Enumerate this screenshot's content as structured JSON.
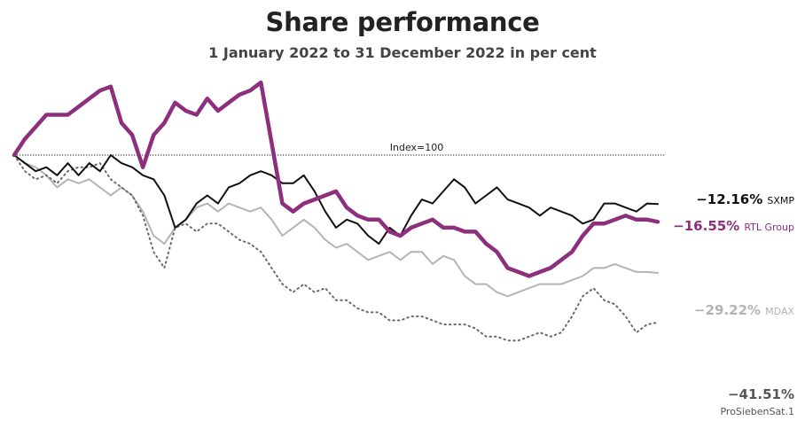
{
  "chart_data": {
    "type": "line",
    "title": "Share performance",
    "subtitle": "1 January 2022 to 31 December 2022 in per cent",
    "reference_line": {
      "label": "Index=100",
      "value": 100
    },
    "x_range": [
      "2022-01-01",
      "2022-12-31"
    ],
    "ylim": [
      50,
      125
    ],
    "grid": false,
    "legend": "none (end-of-line labels)",
    "series": [
      {
        "name": "SXMP",
        "label_value": "−12.16%",
        "color": "#111111",
        "style": "solid",
        "values": [
          100,
          98,
          96,
          97,
          95,
          98,
          95,
          98,
          96,
          100,
          98,
          97,
          95,
          94,
          90,
          82,
          84,
          88,
          90,
          88,
          92,
          93,
          95,
          96,
          95,
          93,
          93,
          95,
          91,
          86,
          82,
          84,
          83,
          80,
          78,
          82,
          80,
          85,
          89,
          88,
          91,
          94,
          92,
          88,
          90,
          92,
          89,
          88,
          87,
          85,
          87,
          86,
          85,
          83,
          84,
          88,
          88,
          87,
          86,
          88,
          87.84
        ]
      },
      {
        "name": "RTL Group",
        "label_value": "−16.55%",
        "color": "#8e2f7e",
        "style": "solid-thick",
        "values": [
          100,
          104,
          107,
          110,
          110,
          110,
          112,
          114,
          116,
          117,
          108,
          105,
          97,
          105,
          108,
          113,
          111,
          110,
          114,
          111,
          113,
          115,
          116,
          118,
          103,
          88,
          86,
          88,
          89,
          90,
          91,
          87,
          85,
          84,
          84,
          81,
          80,
          82,
          83,
          84,
          82,
          82,
          81,
          81,
          78,
          76,
          72,
          71,
          70,
          71,
          72,
          74,
          76,
          80,
          83,
          83,
          84,
          85,
          84,
          84,
          83.45
        ]
      },
      {
        "name": "MDAX",
        "label_value": "−29.22%",
        "color": "#b4b4b4",
        "style": "solid",
        "values": [
          100,
          98,
          97,
          95,
          92,
          94,
          93,
          94,
          92,
          90,
          92,
          90,
          86,
          80,
          78,
          82,
          84,
          87,
          88,
          86,
          88,
          87,
          86,
          87,
          84,
          80,
          82,
          84,
          82,
          79,
          77,
          78,
          76,
          74,
          75,
          76,
          74,
          76,
          76,
          73,
          75,
          74,
          70,
          68,
          68,
          66,
          65,
          66,
          67,
          68,
          68,
          68,
          69,
          70,
          72,
          72,
          73,
          72,
          71,
          71,
          70.78
        ]
      },
      {
        "name": "ProSiebenSat.1",
        "label_value": "−41.51%",
        "color": "#6b6b6b",
        "style": "dotted",
        "values": [
          100,
          96,
          94,
          95,
          93,
          96,
          97,
          97,
          98,
          94,
          92,
          90,
          85,
          76,
          72,
          82,
          83,
          81,
          83,
          83,
          81,
          79,
          78,
          76,
          72,
          68,
          66,
          68,
          66,
          67,
          64,
          64,
          62,
          61,
          61,
          59,
          59,
          60,
          60,
          59,
          58,
          58,
          58,
          57,
          55,
          55,
          54,
          54,
          55,
          56,
          55,
          56,
          60,
          65,
          67,
          64,
          63,
          60,
          56,
          58,
          58.49
        ]
      }
    ]
  }
}
